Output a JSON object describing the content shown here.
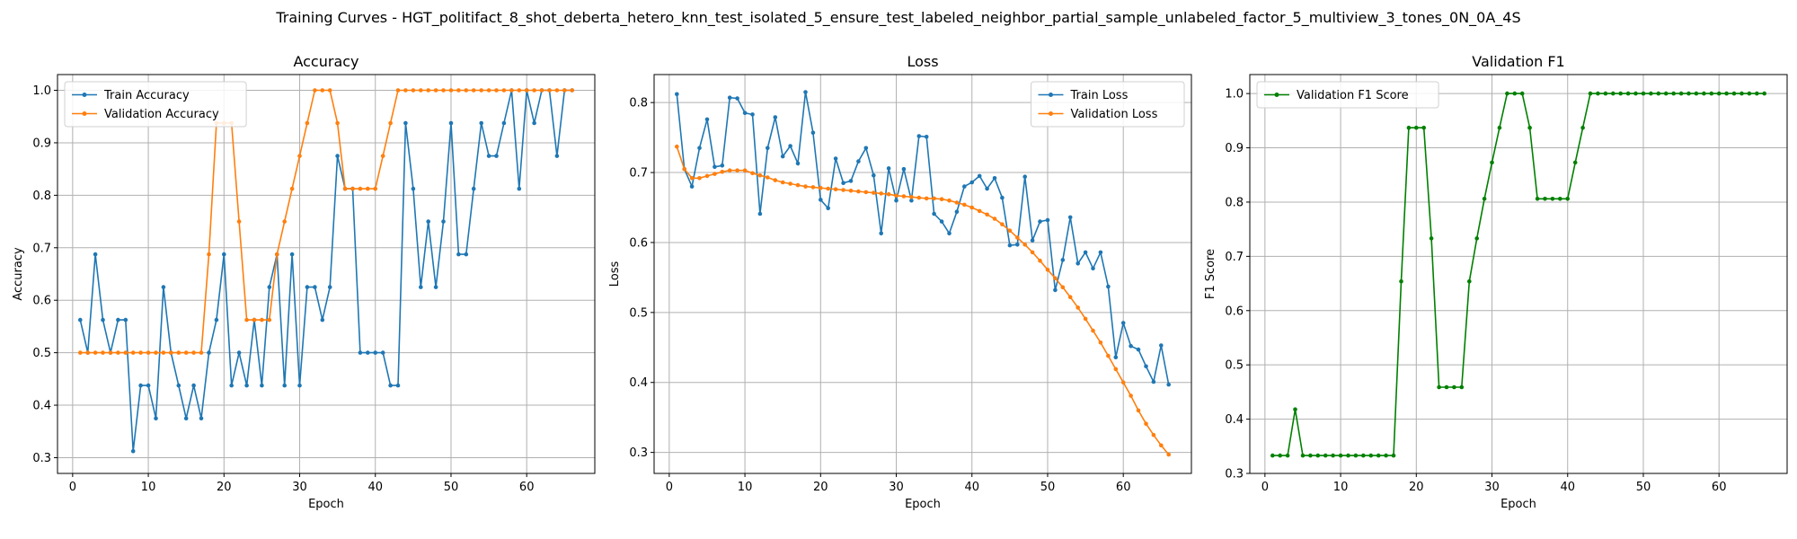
{
  "figure": {
    "suptitle": "Training Curves - HGT_politifact_8_shot_deberta_hetero_knn_test_isolated_5_ensure_test_labeled_neighbor_partial_sample_unlabeled_factor_5_multiview_3_tones_0N_0A_4S"
  },
  "chart_data": [
    {
      "type": "line",
      "title": "Accuracy",
      "xlabel": "Epoch",
      "ylabel": "Accuracy",
      "xlim": [
        -2,
        69
      ],
      "ylim": [
        0.27,
        1.03
      ],
      "xticks": [
        0,
        10,
        20,
        30,
        40,
        50,
        60
      ],
      "yticks": [
        0.3,
        0.4,
        0.5,
        0.6,
        0.7,
        0.8,
        0.9,
        1.0
      ],
      "ytick_labels": [
        "0.3",
        "0.4",
        "0.5",
        "0.6",
        "0.7",
        "0.8",
        "0.9",
        "1.0"
      ],
      "grid": true,
      "legend_loc": "upper-left",
      "x": [
        1,
        2,
        3,
        4,
        5,
        6,
        7,
        8,
        9,
        10,
        11,
        12,
        13,
        14,
        15,
        16,
        17,
        18,
        19,
        20,
        21,
        22,
        23,
        24,
        25,
        26,
        27,
        28,
        29,
        30,
        31,
        32,
        33,
        34,
        35,
        36,
        37,
        38,
        39,
        40,
        41,
        42,
        43,
        44,
        45,
        46,
        47,
        48,
        49,
        50,
        51,
        52,
        53,
        54,
        55,
        56,
        57,
        58,
        59,
        60,
        61,
        62,
        63,
        64,
        65,
        66
      ],
      "series": [
        {
          "name": "Train Accuracy",
          "color": "#1f77b4",
          "values": [
            0.5625,
            0.5,
            0.6875,
            0.5625,
            0.5,
            0.5625,
            0.5625,
            0.3125,
            0.4375,
            0.4375,
            0.375,
            0.625,
            0.5,
            0.4375,
            0.375,
            0.4375,
            0.375,
            0.5,
            0.5625,
            0.6875,
            0.4375,
            0.5,
            0.4375,
            0.5625,
            0.4375,
            0.625,
            0.6875,
            0.4375,
            0.6875,
            0.4375,
            0.625,
            0.625,
            0.5625,
            0.625,
            0.875,
            0.8125,
            0.8125,
            0.5,
            0.5,
            0.5,
            0.5,
            0.4375,
            0.4375,
            0.9375,
            0.8125,
            0.625,
            0.75,
            0.625,
            0.75,
            0.9375,
            0.6875,
            0.6875,
            0.8125,
            0.9375,
            0.875,
            0.875,
            0.9375,
            1.0,
            0.8125,
            1.0,
            0.9375,
            1.0,
            1.0,
            0.875,
            1.0,
            1.0
          ]
        },
        {
          "name": "Validation Accuracy",
          "color": "#ff7f0e",
          "values": [
            0.5,
            0.5,
            0.5,
            0.5,
            0.5,
            0.5,
            0.5,
            0.5,
            0.5,
            0.5,
            0.5,
            0.5,
            0.5,
            0.5,
            0.5,
            0.5,
            0.5,
            0.6875,
            0.9375,
            0.9375,
            0.9375,
            0.75,
            0.5625,
            0.5625,
            0.5625,
            0.5625,
            0.6875,
            0.75,
            0.8125,
            0.875,
            0.9375,
            1.0,
            1.0,
            1.0,
            0.9375,
            0.8125,
            0.8125,
            0.8125,
            0.8125,
            0.8125,
            0.875,
            0.9375,
            1.0,
            1.0,
            1.0,
            1.0,
            1.0,
            1.0,
            1.0,
            1.0,
            1.0,
            1.0,
            1.0,
            1.0,
            1.0,
            1.0,
            1.0,
            1.0,
            1.0,
            1.0,
            1.0,
            1.0,
            1.0,
            1.0,
            1.0,
            1.0
          ]
        }
      ]
    },
    {
      "type": "line",
      "title": "Loss",
      "xlabel": "Epoch",
      "ylabel": "Loss",
      "xlim": [
        -2,
        69
      ],
      "ylim": [
        0.27,
        0.84
      ],
      "xticks": [
        0,
        10,
        20,
        30,
        40,
        50,
        60
      ],
      "yticks": [
        0.3,
        0.4,
        0.5,
        0.6,
        0.7,
        0.8
      ],
      "ytick_labels": [
        "0.3",
        "0.4",
        "0.5",
        "0.6",
        "0.7",
        "0.8"
      ],
      "grid": true,
      "legend_loc": "upper-right",
      "x": [
        1,
        2,
        3,
        4,
        5,
        6,
        7,
        8,
        9,
        10,
        11,
        12,
        13,
        14,
        15,
        16,
        17,
        18,
        19,
        20,
        21,
        22,
        23,
        24,
        25,
        26,
        27,
        28,
        29,
        30,
        31,
        32,
        33,
        34,
        35,
        36,
        37,
        38,
        39,
        40,
        41,
        42,
        43,
        44,
        45,
        46,
        47,
        48,
        49,
        50,
        51,
        52,
        53,
        54,
        55,
        56,
        57,
        58,
        59,
        60,
        61,
        62,
        63,
        64,
        65,
        66
      ],
      "series": [
        {
          "name": "Train Loss",
          "color": "#1f77b4",
          "values": [
            0.812,
            0.705,
            0.68,
            0.735,
            0.776,
            0.708,
            0.71,
            0.807,
            0.806,
            0.785,
            0.783,
            0.641,
            0.735,
            0.779,
            0.723,
            0.738,
            0.713,
            0.815,
            0.757,
            0.661,
            0.649,
            0.72,
            0.685,
            0.688,
            0.716,
            0.735,
            0.696,
            0.613,
            0.706,
            0.66,
            0.705,
            0.66,
            0.752,
            0.751,
            0.641,
            0.63,
            0.613,
            0.644,
            0.68,
            0.686,
            0.695,
            0.677,
            0.692,
            0.664,
            0.596,
            0.597,
            0.694,
            0.603,
            0.63,
            0.632,
            0.532,
            0.575,
            0.636,
            0.57,
            0.586,
            0.563,
            0.586,
            0.537,
            0.436,
            0.485,
            0.452,
            0.447,
            0.423,
            0.401,
            0.453,
            0.397
          ]
        },
        {
          "name": "Validation Loss",
          "color": "#ff7f0e",
          "values": [
            0.737,
            0.705,
            0.692,
            0.692,
            0.695,
            0.698,
            0.701,
            0.703,
            0.703,
            0.703,
            0.699,
            0.696,
            0.693,
            0.689,
            0.686,
            0.684,
            0.682,
            0.68,
            0.679,
            0.678,
            0.677,
            0.676,
            0.675,
            0.674,
            0.673,
            0.672,
            0.671,
            0.67,
            0.669,
            0.667,
            0.666,
            0.665,
            0.664,
            0.663,
            0.663,
            0.662,
            0.66,
            0.657,
            0.654,
            0.65,
            0.645,
            0.64,
            0.634,
            0.626,
            0.617,
            0.607,
            0.597,
            0.586,
            0.574,
            0.561,
            0.549,
            0.536,
            0.522,
            0.507,
            0.491,
            0.474,
            0.457,
            0.438,
            0.419,
            0.4,
            0.381,
            0.36,
            0.341,
            0.325,
            0.31,
            0.297
          ]
        }
      ]
    },
    {
      "type": "line",
      "title": "Validation F1",
      "xlabel": "Epoch",
      "ylabel": "F1 Score",
      "xlim": [
        -2,
        69
      ],
      "ylim": [
        0.3,
        1.035
      ],
      "xticks": [
        0,
        10,
        20,
        30,
        40,
        50,
        60
      ],
      "yticks": [
        0.3,
        0.4,
        0.5,
        0.6,
        0.7,
        0.8,
        0.9,
        1.0
      ],
      "ytick_labels": [
        "0.3",
        "0.4",
        "0.5",
        "0.6",
        "0.7",
        "0.8",
        "0.9",
        "1.0"
      ],
      "grid": true,
      "legend_loc": "upper-left",
      "x": [
        1,
        2,
        3,
        4,
        5,
        6,
        7,
        8,
        9,
        10,
        11,
        12,
        13,
        14,
        15,
        16,
        17,
        18,
        19,
        20,
        21,
        22,
        23,
        24,
        25,
        26,
        27,
        28,
        29,
        30,
        31,
        32,
        33,
        34,
        35,
        36,
        37,
        38,
        39,
        40,
        41,
        42,
        43,
        44,
        45,
        46,
        47,
        48,
        49,
        50,
        51,
        52,
        53,
        54,
        55,
        56,
        57,
        58,
        59,
        60,
        61,
        62,
        63,
        64,
        65,
        66
      ],
      "series": [
        {
          "name": "Validation F1 Score",
          "color": "#008000",
          "values": [
            0.333,
            0.333,
            0.333,
            0.418,
            0.333,
            0.333,
            0.333,
            0.333,
            0.333,
            0.333,
            0.333,
            0.333,
            0.333,
            0.333,
            0.333,
            0.333,
            0.333,
            0.654,
            0.937,
            0.937,
            0.937,
            0.733,
            0.459,
            0.459,
            0.459,
            0.459,
            0.654,
            0.733,
            0.806,
            0.873,
            0.937,
            1.0,
            1.0,
            1.0,
            0.937,
            0.806,
            0.806,
            0.806,
            0.806,
            0.806,
            0.873,
            0.937,
            1.0,
            1.0,
            1.0,
            1.0,
            1.0,
            1.0,
            1.0,
            1.0,
            1.0,
            1.0,
            1.0,
            1.0,
            1.0,
            1.0,
            1.0,
            1.0,
            1.0,
            1.0,
            1.0,
            1.0,
            1.0,
            1.0,
            1.0,
            1.0
          ]
        }
      ]
    }
  ]
}
